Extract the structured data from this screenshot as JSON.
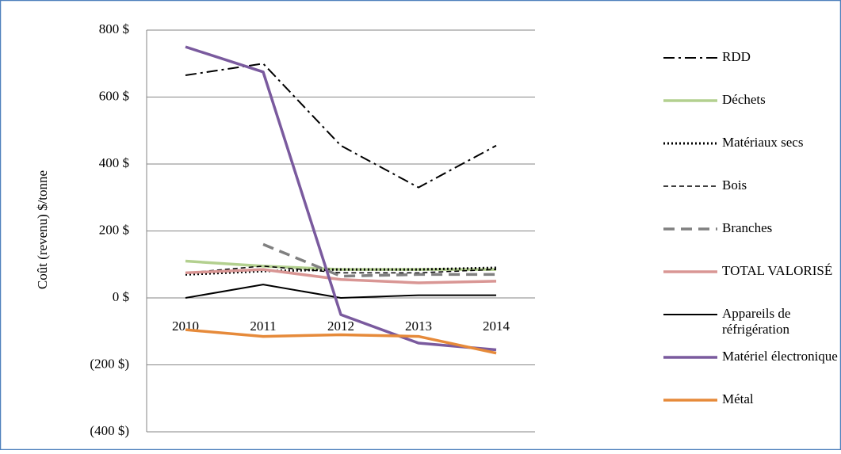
{
  "chart_data": {
    "type": "line",
    "y_label": "Coût (revenu) $/tonne",
    "categories": [
      "2010",
      "2011",
      "2012",
      "2013",
      "2014"
    ],
    "ylim": [
      -400,
      800
    ],
    "yticks": [
      {
        "value": -400,
        "label": "(400 $)"
      },
      {
        "value": -200,
        "label": "(200 $)"
      },
      {
        "value": 0,
        "label": "0 $"
      },
      {
        "value": 200,
        "label": "200 $"
      },
      {
        "value": 400,
        "label": "400 $"
      },
      {
        "value": 600,
        "label": "600 $"
      },
      {
        "value": 800,
        "label": "800 $"
      }
    ],
    "grid": true,
    "legend": "right",
    "series": [
      {
        "name": "RDD",
        "color": "#000000",
        "dash": "14 5 3 5",
        "width": 2,
        "values": [
          665,
          700,
          455,
          330,
          455
        ]
      },
      {
        "name": "Déchets",
        "color": "#b3d08f",
        "dash": "none",
        "width": 3.5,
        "values": [
          110,
          95,
          85,
          85,
          85
        ]
      },
      {
        "name": "Matériaux secs",
        "color": "#000000",
        "dash": "2 3",
        "width": 3,
        "values": [
          70,
          80,
          85,
          85,
          90
        ]
      },
      {
        "name": "Bois",
        "color": "#000000",
        "dash": "6 4",
        "width": 1.5,
        "values": [
          75,
          95,
          75,
          75,
          85
        ]
      },
      {
        "name": "Branches",
        "color": "#808080",
        "dash": "14 8",
        "width": 3.5,
        "values": [
          null,
          160,
          65,
          70,
          70
        ]
      },
      {
        "name": "TOTAL VALORISÉ",
        "color": "#d99694",
        "dash": "none",
        "width": 3.5,
        "values": [
          75,
          85,
          55,
          45,
          50
        ]
      },
      {
        "name": "Appareils de réfrigération",
        "color": "#000000",
        "dash": "none",
        "width": 2,
        "values": [
          0,
          40,
          0,
          8,
          8
        ]
      },
      {
        "name": "Matériel électronique",
        "color": "#7a5a9e",
        "dash": "none",
        "width": 3.5,
        "values": [
          750,
          675,
          -50,
          -135,
          -155
        ]
      },
      {
        "name": "Métal",
        "color": "#e68a3a",
        "dash": "none",
        "width": 3.5,
        "values": [
          -95,
          -115,
          -110,
          -115,
          -165
        ]
      }
    ]
  }
}
